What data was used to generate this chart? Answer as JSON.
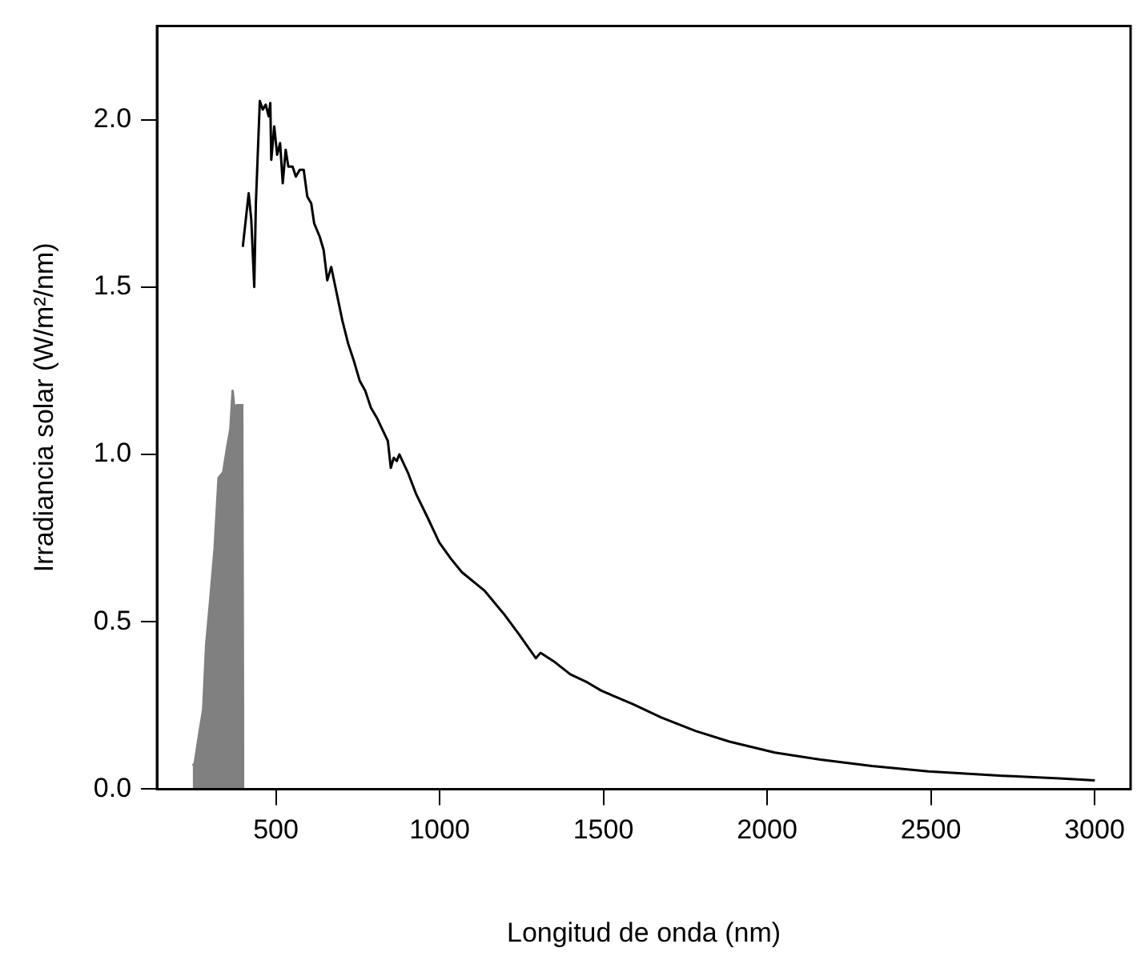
{
  "chart_data": {
    "type": "line",
    "xlabel": "Longitud de onda (nm)",
    "ylabel": "Irradiancia solar (W/m²/nm)",
    "xlim": [
      137,
      3110
    ],
    "ylim": [
      0,
      2.28
    ],
    "xticks": [
      500,
      1000,
      1500,
      2000,
      2500,
      3000
    ],
    "yticks": [
      {
        "value": 0,
        "label": "0.0"
      },
      0.5,
      {
        "value": 1,
        "label": "1.0"
      },
      1.5,
      {
        "value": 2,
        "label": "2.0"
      }
    ],
    "grid": false,
    "legend": false,
    "marker": "none",
    "line_style": "solid",
    "series": [
      {
        "type": "area",
        "color": "#808080",
        "x": [
          246,
          252,
          266,
          278,
          287,
          299,
          313,
          325,
          339,
          352,
          361,
          368,
          373,
          380,
          391,
          401,
          404
        ],
        "values": [
          0.07,
          0.077,
          0.166,
          0.238,
          0.43,
          0.56,
          0.72,
          0.93,
          0.946,
          1.026,
          1.075,
          1.19,
          1.14,
          1.147,
          1.147,
          1.147,
          1.147
        ]
      },
      {
        "type": "line",
        "color": "#000000",
        "x": [
          399,
          417,
          425,
          434,
          439,
          451,
          460,
          469,
          478,
          483,
          486,
          495,
          504,
          513,
          521,
          530,
          538,
          551,
          561,
          573,
          585,
          596,
          608,
          617,
          634,
          646,
          657,
          669,
          686,
          703,
          721,
          738,
          756,
          773,
          790,
          808,
          825,
          842,
          851,
          860,
          869,
          877,
          903,
          929,
          964,
          999,
          1034,
          1068,
          1138,
          1199,
          1242,
          1294,
          1308,
          1347,
          1399,
          1451,
          1494,
          1590,
          1677,
          1781,
          1885,
          2024,
          2163,
          2320,
          2493,
          2719,
          2893,
          3001
        ],
        "values": [
          1.62,
          1.78,
          1.7,
          1.5,
          1.75,
          2.056,
          2.03,
          2.045,
          2.01,
          2.05,
          1.88,
          1.98,
          1.895,
          1.93,
          1.81,
          1.91,
          1.86,
          1.86,
          1.83,
          1.85,
          1.85,
          1.77,
          1.75,
          1.69,
          1.65,
          1.61,
          1.52,
          1.56,
          1.48,
          1.4,
          1.33,
          1.28,
          1.22,
          1.19,
          1.14,
          1.11,
          1.075,
          1.04,
          0.96,
          0.99,
          0.98,
          1.0,
          0.946,
          0.88,
          0.81,
          0.737,
          0.689,
          0.648,
          0.592,
          0.52,
          0.463,
          0.391,
          0.407,
          0.383,
          0.343,
          0.319,
          0.294,
          0.254,
          0.214,
          0.174,
          0.142,
          0.109,
          0.088,
          0.069,
          0.053,
          0.04,
          0.032,
          0.026
        ]
      }
    ]
  }
}
